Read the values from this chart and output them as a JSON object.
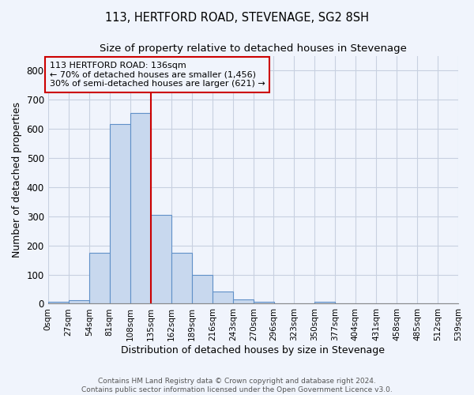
{
  "title": "113, HERTFORD ROAD, STEVENAGE, SG2 8SH",
  "subtitle": "Size of property relative to detached houses in Stevenage",
  "xlabel": "Distribution of detached houses by size in Stevenage",
  "ylabel": "Number of detached properties",
  "bin_edges": [
    0,
    27,
    54,
    81,
    108,
    135,
    162,
    189,
    216,
    243,
    270,
    296,
    323,
    350,
    377,
    404,
    431,
    458,
    485,
    512,
    539
  ],
  "bar_heights": [
    7,
    12,
    175,
    615,
    655,
    305,
    175,
    100,
    43,
    14,
    8,
    0,
    0,
    7,
    0,
    0,
    0,
    0,
    0,
    0
  ],
  "bar_color": "#c8d8ee",
  "bar_edge_color": "#6090c8",
  "grid_color": "#c8d0e0",
  "background_color": "#f0f4fc",
  "plot_bg_color": "#f0f4fc",
  "property_line_x": 135,
  "property_line_color": "#cc0000",
  "annotation_text": "113 HERTFORD ROAD: 136sqm\n← 70% of detached houses are smaller (1,456)\n30% of semi-detached houses are larger (621) →",
  "annotation_box_color": "#cc0000",
  "ylim": [
    0,
    850
  ],
  "tick_labels": [
    "0sqm",
    "27sqm",
    "54sqm",
    "81sqm",
    "108sqm",
    "135sqm",
    "162sqm",
    "189sqm",
    "216sqm",
    "243sqm",
    "270sqm",
    "296sqm",
    "323sqm",
    "350sqm",
    "377sqm",
    "404sqm",
    "431sqm",
    "458sqm",
    "485sqm",
    "512sqm",
    "539sqm"
  ],
  "yticks": [
    0,
    100,
    200,
    300,
    400,
    500,
    600,
    700,
    800
  ],
  "footer_text": "Contains HM Land Registry data © Crown copyright and database right 2024.\nContains public sector information licensed under the Open Government Licence v3.0.",
  "title_fontsize": 10.5,
  "subtitle_fontsize": 9.5
}
